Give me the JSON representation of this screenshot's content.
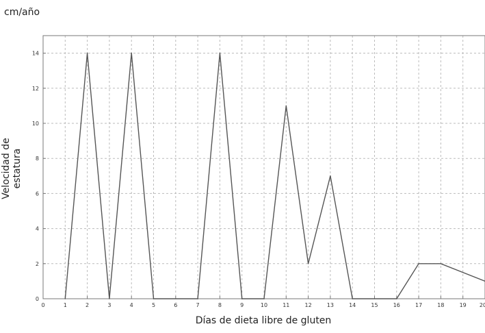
{
  "chart_data": {
    "type": "line",
    "unit_label": "cm/año",
    "xlabel": "Días de dieta libre de gluten",
    "ylabel": "Velocidad de estatura",
    "xlim": [
      0,
      20
    ],
    "ylim": [
      0,
      15
    ],
    "xticks": [
      0,
      1,
      2,
      3,
      4,
      5,
      6,
      7,
      8,
      9,
      10,
      11,
      12,
      13,
      14,
      15,
      16,
      17,
      18,
      19,
      20
    ],
    "yticks": [
      0,
      2,
      4,
      6,
      8,
      10,
      12,
      14
    ],
    "grid": true,
    "line_color": "#555555",
    "grid_color": "#bbbbbb",
    "series": [
      {
        "x": [
          1,
          2,
          3,
          4,
          5,
          7,
          8,
          9,
          10,
          11,
          12,
          13,
          14,
          16,
          17,
          18,
          20
        ],
        "y": [
          0,
          14,
          0,
          14,
          0,
          0,
          14,
          0,
          0,
          11,
          2,
          7,
          0,
          0,
          2,
          2,
          1
        ]
      }
    ]
  }
}
